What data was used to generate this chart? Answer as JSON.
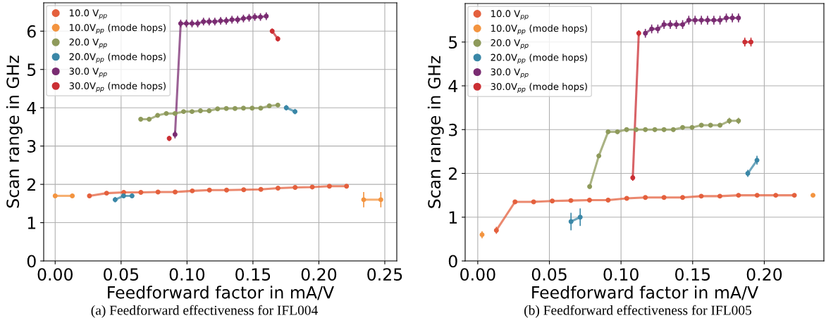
{
  "chart_data": [
    {
      "type": "line",
      "xlabel": "Feedforward factor in mA/V",
      "ylabel": "Scan range in GHz",
      "annotations": [
        "(a) Feedforward effectiveness for IFL004"
      ],
      "xlim": [
        -0.0087,
        0.2591
      ],
      "ylim": [
        0,
        6.74
      ],
      "xticks": [
        {
          "value": 0,
          "label": "0.00"
        },
        {
          "value": 0.05,
          "label": "0.05"
        },
        {
          "value": 0.1,
          "label": "0.10"
        },
        {
          "value": 0.15,
          "label": "0.15"
        },
        {
          "value": 0.2,
          "label": "0.20"
        },
        {
          "value": 0.25,
          "label": "0.25"
        }
      ],
      "yticks": [
        0,
        1,
        2,
        3,
        4,
        5,
        6
      ],
      "grid": true,
      "legend": "top left",
      "marker": "circle",
      "line_style": "solid",
      "series": [
        {
          "name": "10.0 V$_{pp}$",
          "color": "#e4603d",
          "x": [
            0.026,
            0.039,
            0.052,
            0.065,
            0.078,
            0.091,
            0.104,
            0.117,
            0.13,
            0.143,
            0.156,
            0.169,
            0.182,
            0.195,
            0.208,
            0.221
          ],
          "values": [
            1.7,
            1.77,
            1.79,
            1.79,
            1.8,
            1.8,
            1.83,
            1.85,
            1.85,
            1.86,
            1.87,
            1.9,
            1.92,
            1.93,
            1.95,
            1.95
          ],
          "errors": [
            0.03,
            0.03,
            0.03,
            0.03,
            0.03,
            0.03,
            0.03,
            0.03,
            0.03,
            0.03,
            0.03,
            0.03,
            0.03,
            0.03,
            0.03,
            0.03
          ]
        },
        {
          "name": "10.0V$_{pp}$ (mode hops)",
          "color": "#f39440",
          "x": [
            0,
            0.013
          ],
          "values": [
            1.7,
            1.7
          ],
          "errors": [
            0.03,
            0.03
          ]
        },
        {
          "name": "20.0 V$_{pp}$",
          "color": "#8e9a5b",
          "x": [
            0.0649,
            0.0713,
            0.0777,
            0.0843,
            0.0909,
            0.0974,
            0.1038,
            0.1102,
            0.1168,
            0.1232,
            0.1298,
            0.1364,
            0.1428,
            0.1494,
            0.1559,
            0.1624,
            0.1689
          ],
          "values": [
            3.7,
            3.7,
            3.8,
            3.85,
            3.85,
            3.9,
            3.9,
            3.92,
            3.92,
            3.97,
            3.98,
            3.98,
            3.99,
            3.99,
            3.99,
            4.05,
            4.07
          ],
          "errors": [
            0.05,
            0.05,
            0.05,
            0.05,
            0.05,
            0.05,
            0.05,
            0.05,
            0.05,
            0.05,
            0.05,
            0.05,
            0.05,
            0.05,
            0.05,
            0.05,
            0.05
          ]
        },
        {
          "name": "20.0V$_{pp}$ (mode hops)",
          "color": "#3a87a7",
          "x": [
            0.0455,
            0.0519,
            0.0583
          ],
          "values": [
            1.6,
            1.7,
            1.7
          ],
          "errors": [
            0.07,
            0.05,
            0.05
          ]
        },
        {
          "name": "30.0 V$_{pp}$",
          "color": "#7a2c72",
          "x": [
            0.0909,
            0.0952,
            0.0995,
            0.1038,
            0.1081,
            0.1125,
            0.1168,
            0.1211,
            0.1255,
            0.1298,
            0.1341,
            0.1384,
            0.1428,
            0.1471,
            0.1514,
            0.1557,
            0.1601
          ],
          "values": [
            3.3,
            6.2,
            6.2,
            6.2,
            6.2,
            6.25,
            6.25,
            6.25,
            6.27,
            6.27,
            6.3,
            6.3,
            6.33,
            6.35,
            6.37,
            6.37,
            6.39
          ],
          "errors": [
            0.1,
            0.1,
            0.1,
            0.1,
            0.1,
            0.1,
            0.1,
            0.1,
            0.1,
            0.1,
            0.1,
            0.1,
            0.1,
            0.1,
            0.1,
            0.1,
            0.1
          ]
        },
        {
          "name": "30.0V$_{pp}$ (mode hops)",
          "color": "#cb2f34",
          "x": [
            0.1646,
            0.1689
          ],
          "values": [
            6.0,
            5.8
          ],
          "errors": [
            0.07,
            0.07
          ]
        },
        {
          "color": "#f39440",
          "x": [
            0.234,
            0.247
          ],
          "values": [
            1.6,
            1.6
          ],
          "errors": [
            0.2,
            0.2
          ]
        },
        {
          "color": "#cb2f34",
          "x": [
            0.0865
          ],
          "values": [
            3.2
          ],
          "errors": [
            0.07
          ]
        },
        {
          "color": "#3a87a7",
          "x": [
            0.1753,
            0.1819
          ],
          "values": [
            4.0,
            3.9
          ],
          "errors": [
            0.07,
            0.07
          ]
        }
      ]
    },
    {
      "type": "line",
      "xlabel": "Feedforward factor in mA/V",
      "ylabel": "Scan range in GHz",
      "annotations": [
        "(b) Feedforward effectiveness for IFL005"
      ],
      "xlim": [
        -0.0088,
        0.2416
      ],
      "ylim": [
        0,
        5.88
      ],
      "xticks": [
        {
          "value": 0,
          "label": "0.00"
        },
        {
          "value": 0.05,
          "label": "0.05"
        },
        {
          "value": 0.1,
          "label": "0.10"
        },
        {
          "value": 0.15,
          "label": "0.15"
        },
        {
          "value": 0.2,
          "label": "0.20"
        }
      ],
      "yticks": [
        0,
        1,
        2,
        3,
        4,
        5
      ],
      "grid": true,
      "legend": "top left",
      "marker": "circle",
      "line_style": "solid",
      "series": [
        {
          "name": "10.0 V$_{pp}$",
          "color": "#e4603d",
          "x": [
            0.013,
            0.026,
            0.039,
            0.052,
            0.065,
            0.078,
            0.091,
            0.104,
            0.117,
            0.13,
            0.143,
            0.156,
            0.169,
            0.182,
            0.195,
            0.208,
            0.221
          ],
          "values": [
            0.7,
            1.35,
            1.35,
            1.37,
            1.38,
            1.39,
            1.39,
            1.43,
            1.45,
            1.45,
            1.45,
            1.48,
            1.48,
            1.5,
            1.5,
            1.5,
            1.5
          ],
          "errors": [
            0.08,
            0.03,
            0.03,
            0.03,
            0.03,
            0.03,
            0.03,
            0.03,
            0.03,
            0.03,
            0.03,
            0.03,
            0.03,
            0.03,
            0.03,
            0.03,
            0.03
          ]
        },
        {
          "name": "10.0V$_{pp}$ (mode hops)",
          "color": "#f39440",
          "x": [
            0.003
          ],
          "values": [
            0.6
          ],
          "errors": [
            0.08
          ]
        },
        {
          "name": "20.0 V$_{pp}$",
          "color": "#8e9a5b",
          "x": [
            0.0781,
            0.0845,
            0.091,
            0.0975,
            0.1039,
            0.1105,
            0.117,
            0.1236,
            0.13,
            0.1365,
            0.143,
            0.1496,
            0.1561,
            0.1625,
            0.1691,
            0.1756,
            0.182
          ],
          "values": [
            1.7,
            2.4,
            2.95,
            2.95,
            3.0,
            3.0,
            3.0,
            3.0,
            3.0,
            3.0,
            3.05,
            3.05,
            3.1,
            3.1,
            3.1,
            3.2,
            3.2
          ],
          "errors": [
            0.05,
            0.05,
            0.05,
            0.05,
            0.05,
            0.05,
            0.05,
            0.05,
            0.05,
            0.05,
            0.05,
            0.05,
            0.05,
            0.05,
            0.05,
            0.07,
            0.07
          ]
        },
        {
          "name": "20.0V$_{pp}$ (mode hops)",
          "color": "#3a87a7",
          "x": [
            0.0651,
            0.0715
          ],
          "values": [
            0.9,
            1.0
          ],
          "errors": [
            0.2,
            0.2
          ]
        },
        {
          "name": "30.0 V$_{pp}$",
          "color": "#7a2c72",
          "x": [
            0.117,
            0.1214,
            0.1257,
            0.13,
            0.1344,
            0.1386,
            0.143,
            0.1473,
            0.1517,
            0.1561,
            0.1604,
            0.1648,
            0.1691,
            0.1735,
            0.1777,
            0.182
          ],
          "values": [
            5.2,
            5.3,
            5.3,
            5.4,
            5.4,
            5.4,
            5.4,
            5.5,
            5.5,
            5.5,
            5.5,
            5.5,
            5.5,
            5.55,
            5.55,
            5.55
          ],
          "errors": [
            0.1,
            0.1,
            0.1,
            0.1,
            0.1,
            0.1,
            0.1,
            0.1,
            0.1,
            0.1,
            0.1,
            0.1,
            0.1,
            0.1,
            0.1,
            0.1
          ]
        },
        {
          "name": "30.0V$_{pp}$ (mode hops)",
          "color": "#cb2f34",
          "x": [
            0.1082,
            0.1124
          ],
          "values": [
            1.9,
            5.2
          ],
          "errors": [
            0.07,
            0.07
          ]
        },
        {
          "color": "#f39440",
          "x": [
            0.234
          ],
          "values": [
            1.5
          ],
          "errors": [
            0.03
          ]
        },
        {
          "color": "#3a87a7",
          "x": [
            0.1885,
            0.1949
          ],
          "values": [
            2.0,
            2.3
          ],
          "errors": [
            0.08,
            0.1
          ]
        },
        {
          "color": "#cb2f34",
          "x": [
            0.1864,
            0.1907
          ],
          "values": [
            5.0,
            5.0
          ],
          "errors": [
            0.1,
            0.1
          ]
        }
      ]
    }
  ]
}
